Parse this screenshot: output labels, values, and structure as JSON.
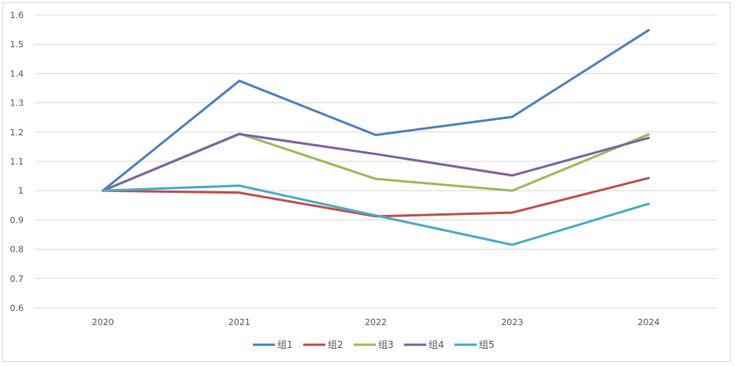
{
  "chart_data": {
    "type": "line",
    "title": "",
    "xlabel": "",
    "ylabel": "",
    "categories": [
      "2020",
      "2021",
      "2022",
      "2023",
      "2024"
    ],
    "ylim": [
      0.6,
      1.6
    ],
    "yticks": [
      "0.6",
      "0.7",
      "0.8",
      "0.9",
      "1",
      "1.1",
      "1.2",
      "1.3",
      "1.4",
      "1.5",
      "1.6"
    ],
    "grid": true,
    "legend_position": "bottom",
    "series": [
      {
        "name": "组1",
        "color": "#4f81bd",
        "values": [
          1.0,
          1.375,
          1.19,
          1.252,
          1.548
        ]
      },
      {
        "name": "组2",
        "color": "#c0504d",
        "values": [
          1.0,
          0.993,
          0.912,
          0.925,
          1.043
        ]
      },
      {
        "name": "组3",
        "color": "#9bbb59",
        "values": [
          1.0,
          1.195,
          1.04,
          1.0,
          1.192
        ]
      },
      {
        "name": "组4",
        "color": "#8064a2",
        "values": [
          1.0,
          1.193,
          1.125,
          1.052,
          1.18
        ]
      },
      {
        "name": "组5",
        "color": "#4bacc6",
        "values": [
          1.0,
          1.017,
          0.915,
          0.815,
          0.955
        ]
      }
    ]
  }
}
